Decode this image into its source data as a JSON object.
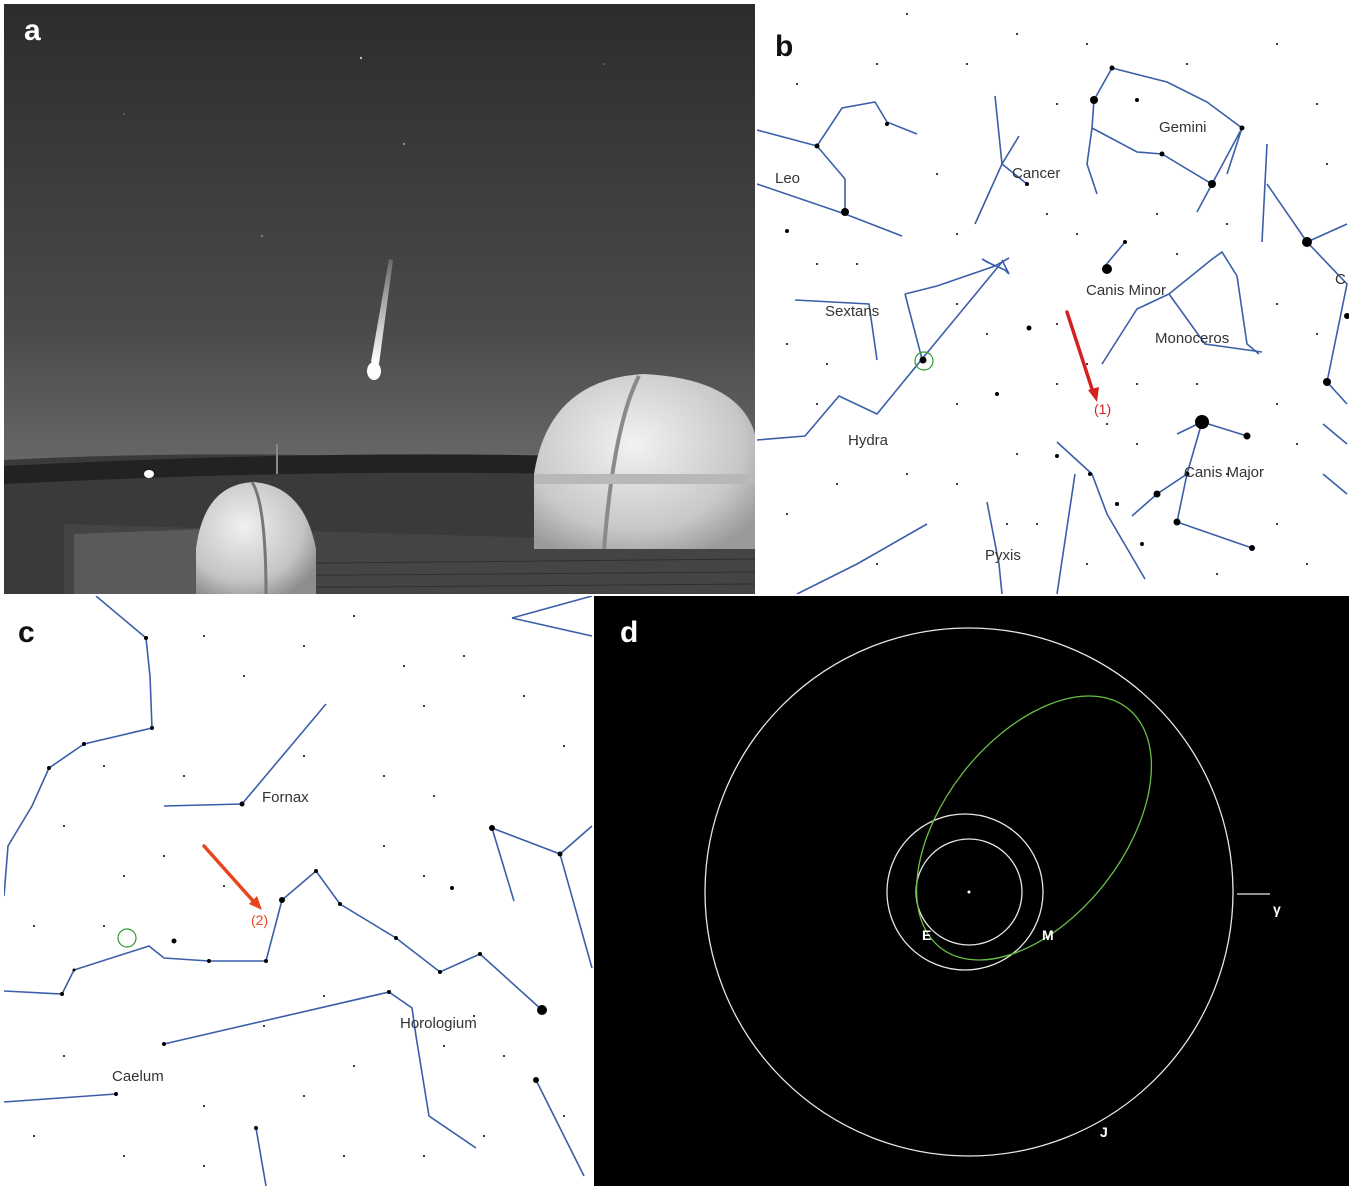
{
  "panels": {
    "a": {
      "label": "a",
      "content": "photo"
    },
    "b": {
      "label": "b",
      "constellations": [
        "Leo",
        "Cancer",
        "Gemini",
        "Sextans",
        "Canis Minor",
        "Monoceros",
        "Hydra",
        "Canis Major",
        "Pyxis"
      ],
      "edge_label": "C",
      "arrow_label": "(1)"
    },
    "c": {
      "label": "c",
      "constellations": [
        "Fornax",
        "Horologium",
        "Caelum"
      ],
      "arrow_label": "(2)"
    },
    "d": {
      "label": "d",
      "orbit_labels": {
        "earth": "E",
        "mars": "M",
        "jupiter": "J",
        "vernal_equinox": "γ"
      }
    }
  },
  "colors": {
    "constellation_line": "#3a5fa8",
    "arrow_b": "#d42020",
    "arrow_c": "#e8451e",
    "marker_circle": "#2e9a2e",
    "orbit_circle": "#e6e6e6",
    "meteoroid_orbit": "#6abf47"
  }
}
